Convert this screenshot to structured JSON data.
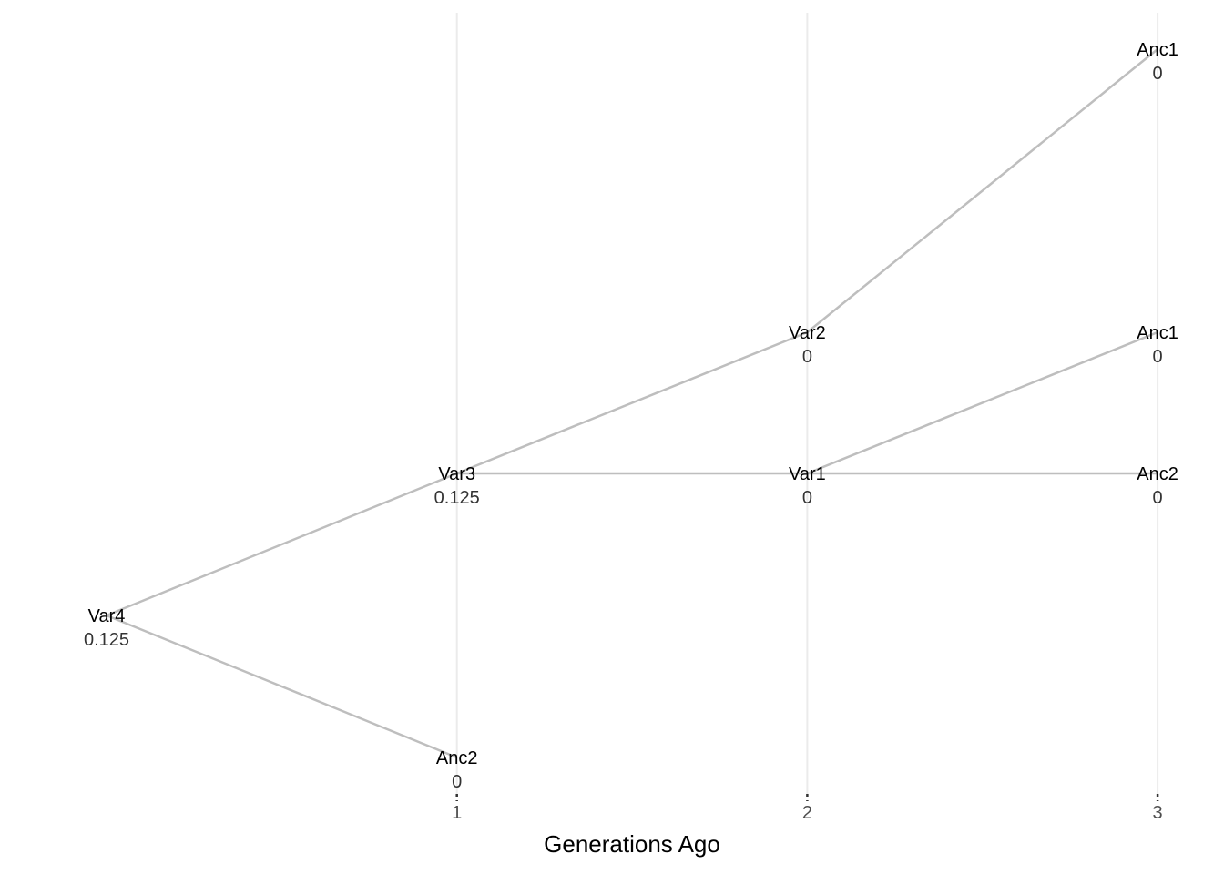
{
  "chart_data": {
    "type": "tree",
    "xlabel": "Generations Ago",
    "x_ticks": [
      "1",
      "2",
      "3"
    ],
    "xlim": [
      0,
      3
    ],
    "grid": "vertical major gridlines",
    "nodes": [
      {
        "id": "var4",
        "name": "Var4",
        "value": "0.125",
        "generation": 0
      },
      {
        "id": "var3",
        "name": "Var3",
        "value": "0.125",
        "generation": 1
      },
      {
        "id": "anc2_g1",
        "name": "Anc2",
        "value": "0",
        "generation": 1
      },
      {
        "id": "var2",
        "name": "Var2",
        "value": "0",
        "generation": 2
      },
      {
        "id": "var1",
        "name": "Var1",
        "value": "0",
        "generation": 2
      },
      {
        "id": "anc1_top",
        "name": "Anc1",
        "value": "0",
        "generation": 3
      },
      {
        "id": "anc1_mid",
        "name": "Anc1",
        "value": "0",
        "generation": 3
      },
      {
        "id": "anc2_g3",
        "name": "Anc2",
        "value": "0",
        "generation": 3
      }
    ],
    "edges": [
      [
        "var4",
        "var3"
      ],
      [
        "var4",
        "anc2_g1"
      ],
      [
        "var3",
        "var2"
      ],
      [
        "var3",
        "var1"
      ],
      [
        "var2",
        "anc1_top"
      ],
      [
        "var1",
        "anc1_mid"
      ],
      [
        "var1",
        "anc2_g3"
      ]
    ]
  }
}
